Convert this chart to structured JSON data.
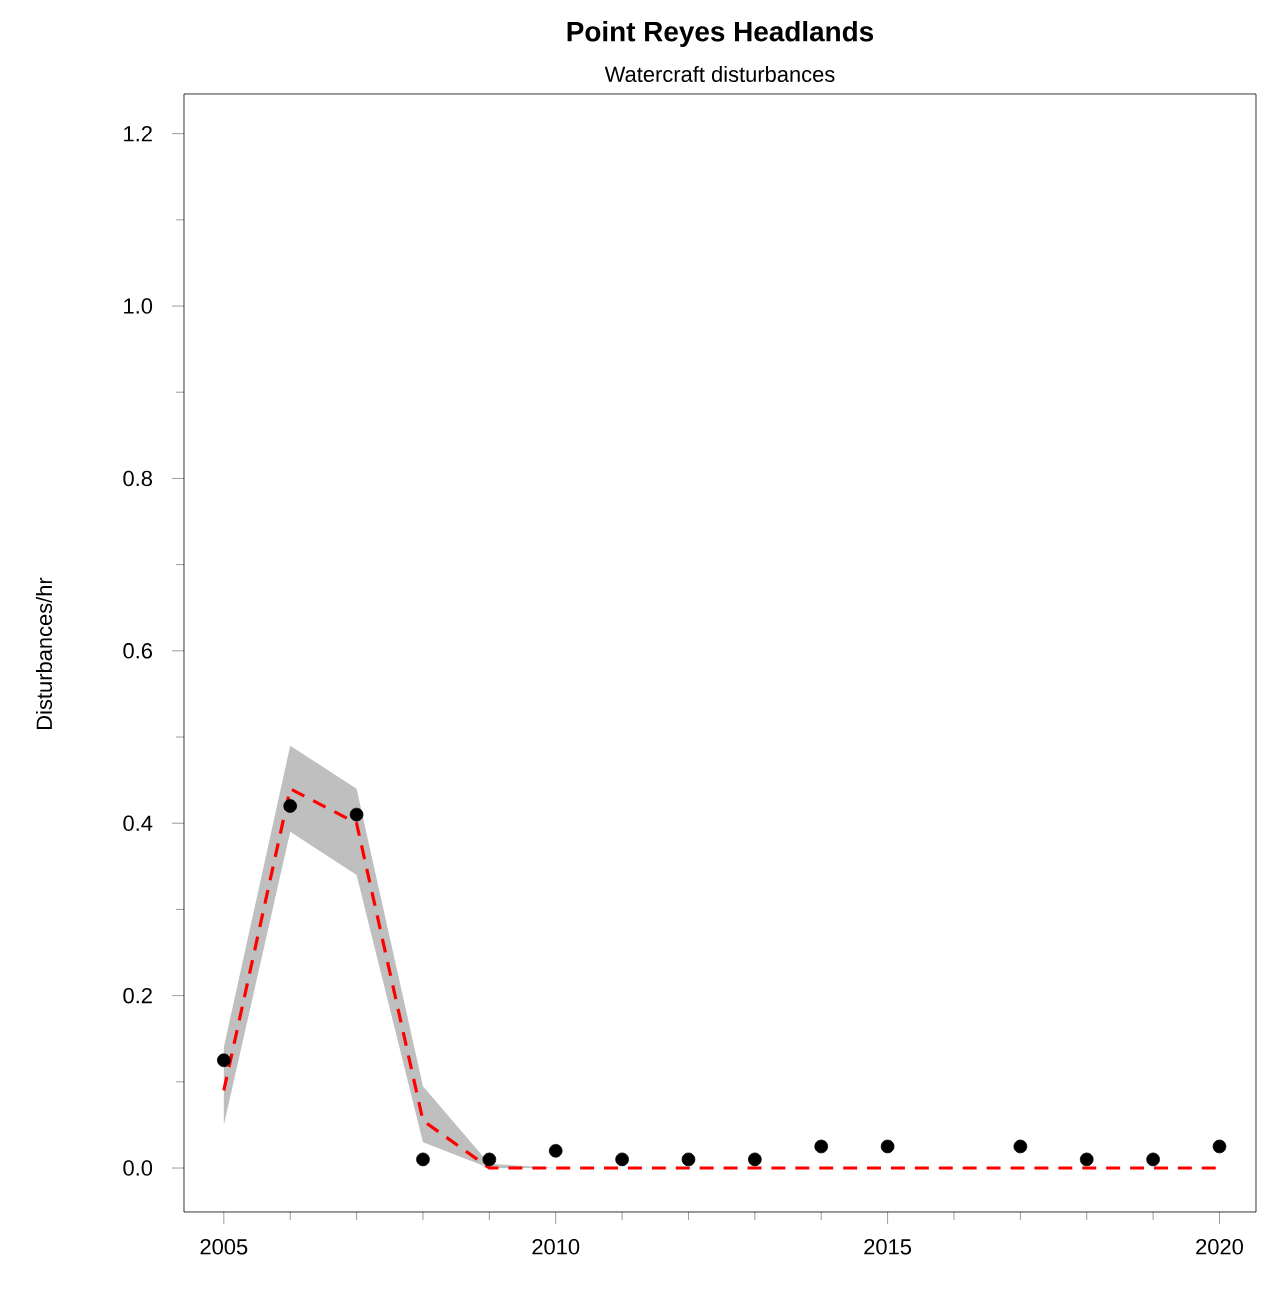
{
  "chart_data": {
    "type": "scatter",
    "title": "Point Reyes Headlands",
    "subtitle": "Watercraft disturbances",
    "ylabel": "Disturbances/hr",
    "xlim": [
      2004.4,
      2020.55
    ],
    "ylim": [
      -0.051,
      1.246
    ],
    "xticks": [
      2005,
      {
        "value": 2006,
        "label": null
      },
      {
        "value": 2007,
        "label": null
      },
      {
        "value": 2008,
        "label": null
      },
      {
        "value": 2009,
        "label": null
      },
      2010,
      {
        "value": 2011,
        "label": null
      },
      {
        "value": 2012,
        "label": null
      },
      {
        "value": 2013,
        "label": null
      },
      {
        "value": 2014,
        "label": null
      },
      2015,
      {
        "value": 2016,
        "label": null
      },
      {
        "value": 2017,
        "label": null
      },
      {
        "value": 2018,
        "label": null
      },
      {
        "value": 2019,
        "label": null
      },
      2020
    ],
    "yticks": [
      {
        "value": 0,
        "label": "0.0"
      },
      {
        "value": 0.1,
        "label": null
      },
      {
        "value": 0.2,
        "label": "0.2"
      },
      {
        "value": 0.3,
        "label": null
      },
      {
        "value": 0.4,
        "label": "0.4"
      },
      {
        "value": 0.5,
        "label": null
      },
      {
        "value": 0.6,
        "label": "0.6"
      },
      {
        "value": 0.7,
        "label": null
      },
      {
        "value": 0.8,
        "label": "0.8"
      },
      {
        "value": 0.9,
        "label": null
      },
      {
        "value": 1.0,
        "label": "1.0"
      },
      {
        "value": 1.1,
        "label": null
      },
      {
        "value": 1.2,
        "label": "1.2"
      }
    ],
    "series": [
      {
        "type": "line",
        "color": "#ff0000",
        "line_style": "dashed",
        "marker": "none",
        "x": [
          2005,
          2006,
          2007,
          2008,
          2009,
          2010,
          2011,
          2012,
          2013,
          2014,
          2015,
          2016,
          2017,
          2018,
          2019,
          2020
        ],
        "values": [
          0.09,
          0.44,
          0.4,
          0.055,
          0.0,
          0.0,
          0.0,
          0.0,
          0.0,
          0.0,
          0.0,
          0.0,
          0.0,
          0.0,
          0.0,
          0.0
        ],
        "lower": [
          0.05,
          0.39,
          0.34,
          0.03,
          0.0,
          0.0,
          0.0,
          0.0,
          0.0,
          0.0,
          0.0,
          0.0,
          0.0,
          0.0,
          0.0,
          0.0
        ],
        "upper": [
          0.14,
          0.49,
          0.44,
          0.095,
          0.005,
          0.0,
          0.0,
          0.0,
          0.0,
          0.0,
          0.0,
          0.0,
          0.0,
          0.0,
          0.0,
          0.0
        ]
      },
      {
        "color": "#000000",
        "marker": "circle",
        "x": [
          2005,
          2006,
          2007,
          2008,
          2009,
          2010,
          2011,
          2012,
          2013,
          2014,
          2015,
          2017,
          2018,
          2019,
          2020
        ],
        "values": [
          0.125,
          0.42,
          0.41,
          0.01,
          0.01,
          0.02,
          0.01,
          0.01,
          0.01,
          0.025,
          0.025,
          0.025,
          0.01,
          0.01,
          0.025
        ]
      }
    ]
  }
}
